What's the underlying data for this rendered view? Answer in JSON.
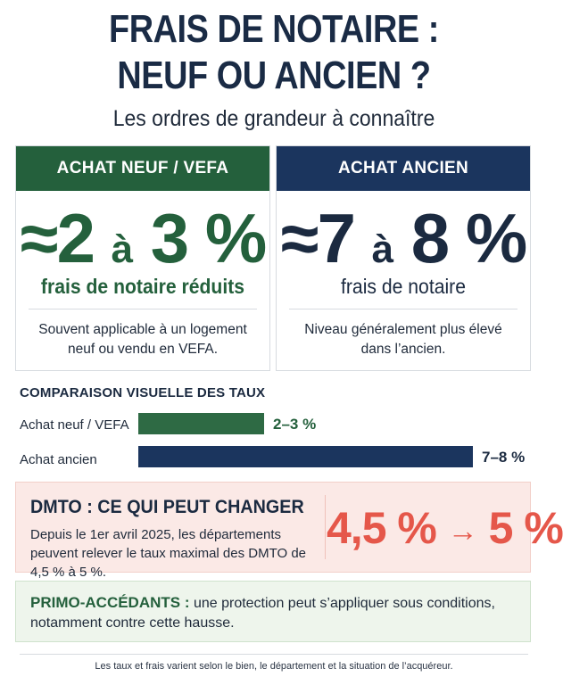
{
  "header": {
    "title_line1": "FRAIS DE NOTAIRE :",
    "title_line2": "NEUF OU ANCIEN ?",
    "subtitle": "Les ordres de grandeur à connaître"
  },
  "cards": {
    "neuf": {
      "heading": "ACHAT NEUF / VEFA",
      "approx": "≈",
      "low": "2",
      "between": "à",
      "high": "3",
      "pct": "%",
      "label": "frais de notaire réduits",
      "description": "Souvent applicable à un logement neuf ou vendu en VEFA.",
      "color": "#24603c"
    },
    "ancien": {
      "heading": "ACHAT ANCIEN",
      "approx": "≈",
      "low": "7",
      "between": "à",
      "high": "8",
      "pct": "%",
      "label": "frais de notaire",
      "description": "Niveau généralement plus élevé dans l’ancien.",
      "color": "#1b355e"
    }
  },
  "comparison": {
    "title": "COMPARAISON VISUELLE DES TAUX",
    "bars": [
      {
        "label": "Achat neuf / VEFA",
        "value_text": "2–3 %",
        "value": 3,
        "color": "#2e6a44"
      },
      {
        "label": "Achat ancien",
        "value_text": "7–8 %",
        "value": 8,
        "color": "#1b355e"
      }
    ]
  },
  "dmto": {
    "title": "DMTO : CE QUI PEUT CHANGER",
    "text": "Depuis le 1er avril 2025, les départements peuvent relever le taux maximal des DMTO de 4,5 % à 5 %.",
    "rate_from": "4,5 %",
    "arrow": "→",
    "rate_to": "5 %",
    "accent": "#e5574a"
  },
  "primo": {
    "strong": "PRIMO-ACCÉDANTS :",
    "text": " une protection peut s’appliquer sous conditions, notamment contre cette hausse."
  },
  "footer": {
    "text": "Les taux et frais varient selon le bien, le département et la situation de l’acquéreur."
  }
}
